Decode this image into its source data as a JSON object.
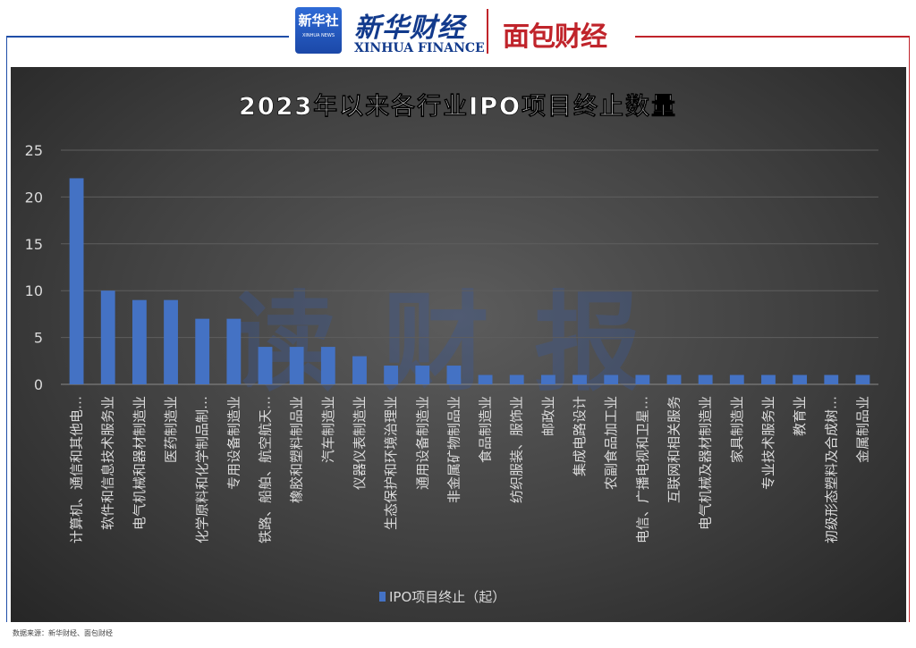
{
  "header": {
    "xinhua_logo_cn": "新华社",
    "xinhua_logo_en": "XINHUA NEWS",
    "brand_cn": "新华财经",
    "brand_en": "XINHUA FINANCE",
    "mianbao_logo": "面包财经"
  },
  "watermark": "读财报",
  "source": "数据来源：新华财经、面包财经",
  "colors": {
    "bar": "#4472c4",
    "panel": "#404040",
    "title": "#ffffff",
    "tick": "#d9d9d9"
  },
  "chart_data": {
    "type": "bar",
    "title": "2023年以来各行业IPO项目终止数量",
    "xlabel": "",
    "ylabel": "",
    "ylim": [
      0,
      25
    ],
    "yticks": [
      0,
      5,
      10,
      15,
      20,
      25
    ],
    "grid": true,
    "legend_position": "bottom",
    "categories": [
      "计算机、通信和其他电…",
      "软件和信息技术服务业",
      "电气机械和器材制造业",
      "医药制造业",
      "化学原料和化学制品制…",
      "专用设备制造业",
      "铁路、船舶、航空航天…",
      "橡胶和塑料制品业",
      "汽车制造业",
      "仪器仪表制造业",
      "生态保护和环境治理业",
      "通用设备制造业",
      "非金属矿物制品业",
      "食品制造业",
      "纺织服装、服饰业",
      "邮政业",
      "集成电路设计",
      "农副食品加工业",
      "电信、广播电视和卫星…",
      "互联网和相关服务",
      "电气机械及器材制造业",
      "家具制造业",
      "专业技术服务业",
      "教育业",
      "初级形态塑料及合成树…",
      "金属制品业"
    ],
    "series": [
      {
        "name": "IPO项目终止（起）",
        "values": [
          22,
          10,
          9,
          9,
          7,
          7,
          4,
          4,
          4,
          3,
          2,
          2,
          2,
          1,
          1,
          1,
          1,
          1,
          1,
          1,
          1,
          1,
          1,
          1,
          1,
          1
        ]
      }
    ]
  }
}
